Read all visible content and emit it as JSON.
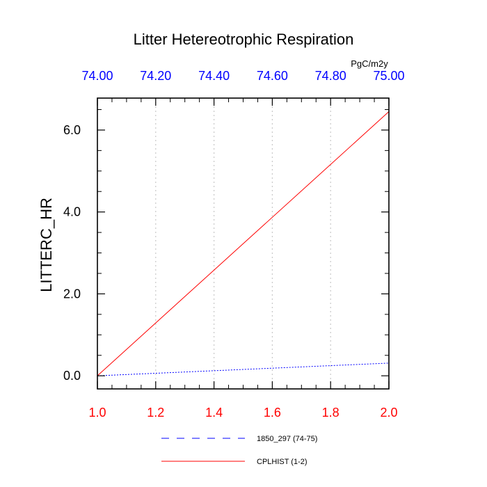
{
  "chart_data": {
    "type": "line",
    "title": "Litter Hetereotrophic Respiration",
    "ylabel": "LITTERC_HR",
    "units": "PgC/m2y",
    "xlim": [
      1.0,
      2.0
    ],
    "x_ticks": [
      "1.0",
      "1.2",
      "1.4",
      "1.6",
      "1.8",
      "2.0"
    ],
    "x_tick_values": [
      1.0,
      1.2,
      1.4,
      1.6,
      1.8,
      2.0
    ],
    "x_top_lim": [
      74.0,
      75.0
    ],
    "x_top_ticks": [
      "74.00",
      "74.20",
      "74.40",
      "74.60",
      "74.80",
      "75.00"
    ],
    "x_top_tick_values": [
      74.0,
      74.2,
      74.4,
      74.6,
      74.8,
      75.0
    ],
    "ylim": [
      -0.32,
      6.78
    ],
    "y_ticks": [
      "0.0",
      "2.0",
      "4.0",
      "6.0"
    ],
    "y_tick_values": [
      0.0,
      2.0,
      4.0,
      6.0
    ],
    "grid": "vertical dotted",
    "legend_position": "bottom",
    "series": [
      {
        "name": "1850_297 (74-75)",
        "axis": "top",
        "color": "#0000ff",
        "dash": "dashed",
        "x": [
          74.0,
          75.0
        ],
        "y": [
          0.0,
          0.31
        ]
      },
      {
        "name": "CPLHIST (1-2)",
        "axis": "bottom",
        "color": "#ff0000",
        "dash": "solid",
        "x": [
          1.0,
          2.0
        ],
        "y": [
          0.0,
          6.45
        ]
      }
    ],
    "colors": {
      "bottom_axis_labels": "#ff0000",
      "top_axis_labels": "#0000ff",
      "frame": "#000000",
      "grid": "#c8c8c8"
    }
  }
}
